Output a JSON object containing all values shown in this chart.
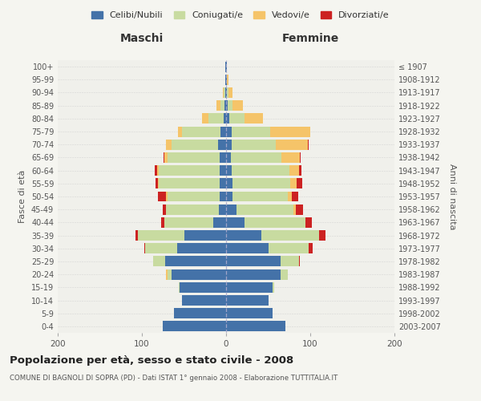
{
  "age_groups": [
    "0-4",
    "5-9",
    "10-14",
    "15-19",
    "20-24",
    "25-29",
    "30-34",
    "35-39",
    "40-44",
    "45-49",
    "50-54",
    "55-59",
    "60-64",
    "65-69",
    "70-74",
    "75-79",
    "80-84",
    "85-89",
    "90-94",
    "95-99",
    "100+"
  ],
  "birth_years": [
    "2003-2007",
    "1998-2002",
    "1993-1997",
    "1988-1992",
    "1983-1987",
    "1978-1982",
    "1973-1977",
    "1968-1972",
    "1963-1967",
    "1958-1962",
    "1953-1957",
    "1948-1952",
    "1943-1947",
    "1938-1942",
    "1933-1937",
    "1928-1932",
    "1923-1927",
    "1918-1922",
    "1913-1917",
    "1908-1912",
    "≤ 1907"
  ],
  "males": {
    "celibi": [
      75,
      62,
      52,
      55,
      65,
      72,
      58,
      50,
      15,
      9,
      8,
      8,
      8,
      8,
      10,
      7,
      3,
      2,
      1,
      1,
      1
    ],
    "coniugati": [
      0,
      0,
      0,
      1,
      5,
      15,
      38,
      55,
      58,
      62,
      62,
      72,
      72,
      62,
      55,
      45,
      18,
      5,
      2,
      0,
      0
    ],
    "vedovi": [
      0,
      0,
      0,
      0,
      1,
      0,
      0,
      0,
      0,
      0,
      1,
      1,
      2,
      3,
      6,
      5,
      8,
      4,
      1,
      0,
      0
    ],
    "divorziati": [
      0,
      0,
      0,
      0,
      0,
      0,
      1,
      3,
      4,
      4,
      10,
      3,
      3,
      1,
      0,
      0,
      0,
      0,
      0,
      0,
      0
    ]
  },
  "females": {
    "nubili": [
      70,
      55,
      50,
      55,
      65,
      65,
      50,
      42,
      22,
      12,
      8,
      8,
      7,
      6,
      7,
      7,
      4,
      2,
      1,
      1,
      1
    ],
    "coniugate": [
      0,
      0,
      0,
      2,
      8,
      22,
      48,
      68,
      72,
      68,
      65,
      68,
      68,
      60,
      52,
      45,
      18,
      6,
      2,
      0,
      0
    ],
    "vedove": [
      0,
      0,
      0,
      0,
      0,
      0,
      0,
      0,
      0,
      3,
      5,
      8,
      12,
      22,
      38,
      48,
      22,
      12,
      5,
      2,
      0
    ],
    "divorziate": [
      0,
      0,
      0,
      0,
      0,
      1,
      5,
      8,
      8,
      8,
      8,
      6,
      3,
      1,
      1,
      0,
      0,
      0,
      0,
      0,
      0
    ]
  },
  "colors": {
    "celibi": "#4472a8",
    "coniugati": "#c8dba0",
    "vedovi": "#f5c469",
    "divorziati": "#cc2222"
  },
  "xlim": 200,
  "title": "Popolazione per età, sesso e stato civile - 2008",
  "subtitle": "COMUNE DI BAGNOLI DI SOPRA (PD) - Dati ISTAT 1° gennaio 2008 - Elaborazione TUTTITALIA.IT",
  "ylabel_left": "Fasce di età",
  "ylabel_right": "Anni di nascita",
  "legend_labels": [
    "Celibi/Nubili",
    "Coniugati/e",
    "Vedovi/e",
    "Divorziati/e"
  ],
  "maschi_label": "Maschi",
  "femmine_label": "Femmine",
  "bg_color": "#f5f5f0",
  "plot_bg_color": "#f0f0eb"
}
